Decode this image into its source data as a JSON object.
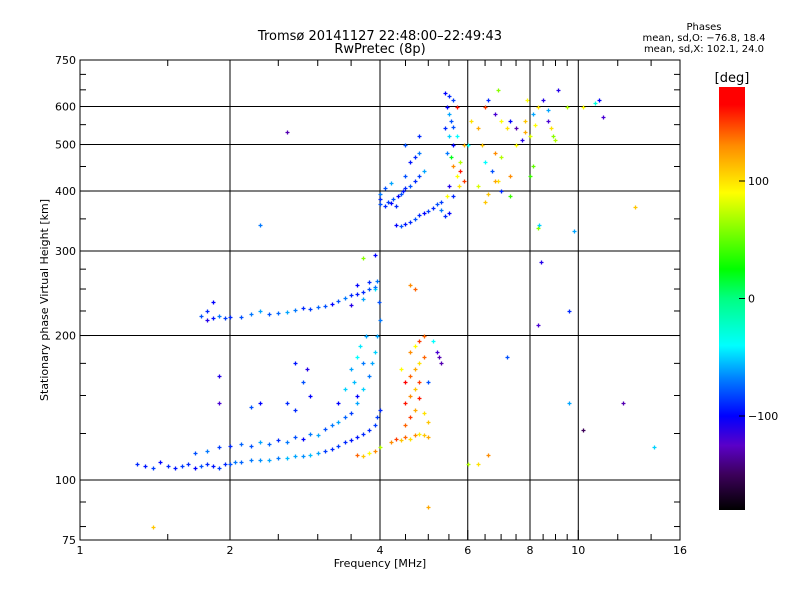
{
  "chart_data": {
    "type": "scatter",
    "title": "Tromsø 20141127 22:48:00–22:49:43",
    "subtitle": "RwPretec (8p)",
    "stats": {
      "heading": "Phases",
      "o_line": "mean, sd,O: −76.8, 18.4",
      "x_line": "mean, sd,X: 102.1, 24.0"
    },
    "xlabel": "Frequency [MHz]",
    "ylabel": "Stationary phase Virtual Height [km]",
    "xscale": "log",
    "yscale": "log",
    "xlim": [
      1,
      16
    ],
    "ylim": [
      75,
      750
    ],
    "xticks": [
      1,
      2,
      4,
      6,
      8,
      10,
      16
    ],
    "xtick_labels": [
      "1",
      "2",
      "4",
      "6",
      "8",
      "10",
      "16"
    ],
    "yticks": [
      75,
      100,
      200,
      300,
      400,
      500,
      600,
      750
    ],
    "ytick_labels": [
      "75",
      "100",
      "200",
      "300",
      "400",
      "500",
      "600",
      "750"
    ],
    "xgrid": [
      2,
      4,
      6,
      8,
      10
    ],
    "ygrid": [
      100,
      200,
      300,
      400,
      500,
      600
    ],
    "grid": true,
    "colorbar": {
      "label": "[deg]",
      "range": [
        -180,
        180
      ],
      "ticks": [
        100,
        0,
        -100
      ],
      "tick_labels": [
        "100",
        "0",
        "−100"
      ],
      "placement": "right"
    },
    "point_format": [
      "frequency_MHz",
      "height_km",
      "phase_deg"
    ],
    "points": [
      [
        1.3,
        108,
        -90
      ],
      [
        1.35,
        107,
        -95
      ],
      [
        1.4,
        106,
        -85
      ],
      [
        1.45,
        109,
        -100
      ],
      [
        1.5,
        107,
        -90
      ],
      [
        1.55,
        106,
        -95
      ],
      [
        1.6,
        107,
        -85
      ],
      [
        1.65,
        108,
        -90
      ],
      [
        1.7,
        106,
        -100
      ],
      [
        1.75,
        107,
        -80
      ],
      [
        1.8,
        108,
        -90
      ],
      [
        1.85,
        107,
        -95
      ],
      [
        1.9,
        106,
        -85
      ],
      [
        1.95,
        108,
        -90
      ],
      [
        2.0,
        108,
        -80
      ],
      [
        2.05,
        109,
        -70
      ],
      [
        2.1,
        109,
        -75
      ],
      [
        2.2,
        110,
        -70
      ],
      [
        2.3,
        110,
        -65
      ],
      [
        2.4,
        110,
        -60
      ],
      [
        2.5,
        111,
        -70
      ],
      [
        2.6,
        111,
        -55
      ],
      [
        2.7,
        112,
        -60
      ],
      [
        2.8,
        112,
        -65
      ],
      [
        2.9,
        113,
        -55
      ],
      [
        3.0,
        114,
        -60
      ],
      [
        3.1,
        115,
        -85
      ],
      [
        3.2,
        116,
        -90
      ],
      [
        3.3,
        118,
        -85
      ],
      [
        3.4,
        120,
        -90
      ],
      [
        3.5,
        121,
        -95
      ],
      [
        3.6,
        123,
        -95
      ],
      [
        3.7,
        125,
        -90
      ],
      [
        3.8,
        127,
        -90
      ],
      [
        3.9,
        130,
        -85
      ],
      [
        3.95,
        135,
        -85
      ],
      [
        4.0,
        140,
        -90
      ],
      [
        1.7,
        114,
        -80
      ],
      [
        1.8,
        115,
        -70
      ],
      [
        1.9,
        117,
        -85
      ],
      [
        2.0,
        118,
        -90
      ],
      [
        2.1,
        119,
        -75
      ],
      [
        2.2,
        118,
        -80
      ],
      [
        2.3,
        120,
        -60
      ],
      [
        2.4,
        119,
        -75
      ],
      [
        2.5,
        121,
        -90
      ],
      [
        2.6,
        120,
        -70
      ],
      [
        2.7,
        123,
        -80
      ],
      [
        2.8,
        122,
        -100
      ],
      [
        2.9,
        125,
        -70
      ],
      [
        3.0,
        124,
        -60
      ],
      [
        3.1,
        128,
        -80
      ],
      [
        3.2,
        130,
        -70
      ],
      [
        3.3,
        132,
        -60
      ],
      [
        3.4,
        135,
        -75
      ],
      [
        3.5,
        138,
        -85
      ],
      [
        3.6,
        145,
        -60
      ],
      [
        3.7,
        155,
        -50
      ],
      [
        3.8,
        165,
        -70
      ],
      [
        3.85,
        175,
        -60
      ],
      [
        3.9,
        185,
        -50
      ],
      [
        3.95,
        200,
        -60
      ],
      [
        4.0,
        215,
        -70
      ],
      [
        3.98,
        235,
        -80
      ],
      [
        3.95,
        260,
        -70
      ],
      [
        3.9,
        250,
        -45
      ],
      [
        3.5,
        170,
        -60
      ],
      [
        3.6,
        180,
        -40
      ],
      [
        3.7,
        175,
        -70
      ],
      [
        3.55,
        160,
        -55
      ],
      [
        3.65,
        190,
        -45
      ],
      [
        3.75,
        200,
        -60
      ],
      [
        3.6,
        150,
        -100
      ],
      [
        3.4,
        155,
        -50
      ],
      [
        3.3,
        145,
        -100
      ],
      [
        2.7,
        140,
        -90
      ],
      [
        2.8,
        160,
        -80
      ],
      [
        2.9,
        150,
        -100
      ],
      [
        2.85,
        170,
        -110
      ],
      [
        2.6,
        145,
        -90
      ],
      [
        2.3,
        145,
        -100
      ],
      [
        2.2,
        142,
        -80
      ],
      [
        1.9,
        165,
        -110
      ],
      [
        1.9,
        145,
        -120
      ],
      [
        2.7,
        175,
        -95
      ],
      [
        1.75,
        220,
        -80
      ],
      [
        1.8,
        225,
        -90
      ],
      [
        1.85,
        218,
        -95
      ],
      [
        1.9,
        220,
        -70
      ],
      [
        1.95,
        218,
        -85
      ],
      [
        2.0,
        219,
        -90
      ],
      [
        2.1,
        219,
        -80
      ],
      [
        2.2,
        222,
        -70
      ],
      [
        2.3,
        225,
        -60
      ],
      [
        2.4,
        222,
        -80
      ],
      [
        2.5,
        223,
        -75
      ],
      [
        2.6,
        224,
        -60
      ],
      [
        2.7,
        226,
        -70
      ],
      [
        2.8,
        228,
        -90
      ],
      [
        2.9,
        227,
        -85
      ],
      [
        3.0,
        229,
        -75
      ],
      [
        3.1,
        230,
        -80
      ],
      [
        3.2,
        233,
        -100
      ],
      [
        3.3,
        236,
        -80
      ],
      [
        3.4,
        240,
        -70
      ],
      [
        3.5,
        243,
        -90
      ],
      [
        3.6,
        244,
        -95
      ],
      [
        3.7,
        247,
        -90
      ],
      [
        3.8,
        250,
        -80
      ],
      [
        3.9,
        253,
        -70
      ],
      [
        3.7,
        238,
        -60
      ],
      [
        3.5,
        232,
        -110
      ],
      [
        3.6,
        255,
        -100
      ],
      [
        3.8,
        258,
        -90
      ],
      [
        1.85,
        235,
        -100
      ],
      [
        1.8,
        215,
        -110
      ],
      [
        4.2,
        120,
        130
      ],
      [
        4.3,
        122,
        150
      ],
      [
        4.4,
        121,
        110
      ],
      [
        4.5,
        123,
        140
      ],
      [
        4.6,
        122,
        100
      ],
      [
        4.7,
        124,
        130
      ],
      [
        4.8,
        125,
        95
      ],
      [
        4.9,
        124,
        110
      ],
      [
        5.0,
        123,
        120
      ],
      [
        4.5,
        130,
        140
      ],
      [
        4.6,
        135,
        150
      ],
      [
        4.7,
        140,
        120
      ],
      [
        4.5,
        145,
        160
      ],
      [
        4.6,
        150,
        130
      ],
      [
        4.7,
        155,
        110
      ],
      [
        4.8,
        160,
        150
      ],
      [
        4.6,
        165,
        140
      ],
      [
        4.7,
        170,
        120
      ],
      [
        4.8,
        175,
        100
      ],
      [
        4.9,
        180,
        140
      ],
      [
        4.6,
        185,
        130
      ],
      [
        4.7,
        190,
        90
      ],
      [
        4.8,
        195,
        150
      ],
      [
        4.9,
        200,
        140
      ],
      [
        4.5,
        160,
        170
      ],
      [
        4.4,
        170,
        90
      ],
      [
        4.8,
        148,
        160
      ],
      [
        4.9,
        138,
        100
      ],
      [
        5.0,
        132,
        110
      ],
      [
        4.7,
        250,
        140
      ],
      [
        3.7,
        112,
        110
      ],
      [
        3.8,
        114,
        90
      ],
      [
        3.9,
        115,
        130
      ],
      [
        3.6,
        113,
        140
      ],
      [
        4.0,
        117,
        70
      ],
      [
        5.2,
        185,
        -120
      ],
      [
        5.0,
        160,
        -80
      ],
      [
        5.3,
        175,
        -130
      ],
      [
        5.25,
        180,
        -130
      ],
      [
        4.0,
        375,
        -80
      ],
      [
        4.0,
        385,
        -90
      ],
      [
        4.0,
        395,
        -70
      ],
      [
        4.1,
        372,
        -90
      ],
      [
        4.15,
        380,
        -85
      ],
      [
        4.2,
        378,
        -100
      ],
      [
        4.25,
        385,
        -80
      ],
      [
        4.3,
        372,
        -90
      ],
      [
        4.35,
        390,
        -100
      ],
      [
        4.4,
        395,
        -80
      ],
      [
        4.45,
        400,
        -95
      ],
      [
        4.5,
        405,
        -90
      ],
      [
        4.6,
        410,
        -80
      ],
      [
        4.7,
        420,
        -90
      ],
      [
        4.8,
        430,
        -85
      ],
      [
        4.9,
        440,
        -60
      ],
      [
        4.3,
        340,
        -100
      ],
      [
        4.4,
        338,
        -80
      ],
      [
        4.5,
        342,
        -95
      ],
      [
        4.6,
        345,
        -90
      ],
      [
        4.7,
        350,
        -80
      ],
      [
        4.8,
        356,
        -90
      ],
      [
        4.9,
        360,
        -100
      ],
      [
        5.0,
        363,
        -85
      ],
      [
        5.1,
        368,
        -90
      ],
      [
        5.2,
        375,
        -80
      ],
      [
        5.3,
        365,
        -70
      ],
      [
        5.4,
        355,
        -90
      ],
      [
        5.5,
        360,
        -100
      ],
      [
        5.3,
        380,
        -85
      ],
      [
        4.1,
        405,
        -80
      ],
      [
        4.2,
        415,
        -60
      ],
      [
        4.5,
        430,
        -80
      ],
      [
        4.6,
        460,
        -95
      ],
      [
        4.7,
        470,
        -90
      ],
      [
        4.8,
        480,
        -70
      ],
      [
        4.5,
        500,
        -80
      ],
      [
        4.8,
        520,
        -90
      ],
      [
        5.4,
        640,
        -100
      ],
      [
        5.5,
        630,
        -90
      ],
      [
        5.6,
        620,
        -85
      ],
      [
        5.45,
        600,
        -100
      ],
      [
        5.5,
        580,
        -60
      ],
      [
        5.55,
        560,
        -80
      ],
      [
        5.4,
        540,
        -90
      ],
      [
        5.5,
        520,
        -50
      ],
      [
        5.6,
        500,
        -100
      ],
      [
        5.45,
        480,
        -70
      ],
      [
        5.55,
        470,
        20
      ],
      [
        5.6,
        450,
        130
      ],
      [
        5.7,
        430,
        90
      ],
      [
        5.75,
        410,
        100
      ],
      [
        5.8,
        460,
        70
      ],
      [
        5.9,
        500,
        120
      ],
      [
        5.7,
        520,
        -40
      ],
      [
        5.8,
        440,
        160
      ],
      [
        5.9,
        420,
        150
      ],
      [
        5.5,
        410,
        -110
      ],
      [
        5.6,
        390,
        -90
      ],
      [
        5.45,
        390,
        90
      ],
      [
        5.6,
        545,
        -80
      ],
      [
        5.7,
        600,
        160
      ],
      [
        6.1,
        560,
        100
      ],
      [
        6.3,
        540,
        120
      ],
      [
        6.5,
        600,
        150
      ],
      [
        6.6,
        620,
        -90
      ],
      [
        6.8,
        580,
        -120
      ],
      [
        7.0,
        560,
        90
      ],
      [
        7.2,
        540,
        100
      ],
      [
        6.4,
        500,
        110
      ],
      [
        6.8,
        480,
        130
      ],
      [
        7.0,
        470,
        70
      ],
      [
        6.5,
        460,
        -40
      ],
      [
        6.7,
        440,
        -80
      ],
      [
        6.9,
        420,
        100
      ],
      [
        6.3,
        410,
        80
      ],
      [
        6.6,
        395,
        110
      ],
      [
        7.0,
        400,
        -90
      ],
      [
        7.3,
        430,
        130
      ],
      [
        7.5,
        500,
        90
      ],
      [
        7.7,
        510,
        -110
      ],
      [
        7.5,
        540,
        -130
      ],
      [
        7.3,
        560,
        -100
      ],
      [
        7.8,
        530,
        120
      ],
      [
        8.0,
        520,
        80
      ],
      [
        8.2,
        550,
        90
      ],
      [
        8.1,
        580,
        -60
      ],
      [
        8.3,
        600,
        100
      ],
      [
        8.5,
        620,
        -110
      ],
      [
        8.7,
        560,
        -120
      ],
      [
        8.8,
        540,
        100
      ],
      [
        8.9,
        520,
        60
      ],
      [
        9.0,
        510,
        70
      ],
      [
        8.7,
        590,
        -60
      ],
      [
        9.1,
        650,
        -110
      ],
      [
        9.5,
        600,
        70
      ],
      [
        10.2,
        600,
        90
      ],
      [
        10.8,
        610,
        -30
      ],
      [
        11.2,
        570,
        -120
      ],
      [
        11.0,
        620,
        -100
      ],
      [
        7.8,
        560,
        110
      ],
      [
        7.9,
        620,
        90
      ],
      [
        8.0,
        430,
        40
      ],
      [
        8.1,
        450,
        50
      ],
      [
        6.9,
        650,
        60
      ],
      [
        6.5,
        380,
        110
      ],
      [
        8.3,
        335,
        60
      ],
      [
        8.35,
        340,
        -50
      ],
      [
        9.8,
        330,
        -60
      ],
      [
        13.0,
        370,
        110
      ],
      [
        6.8,
        420,
        120
      ],
      [
        7.3,
        390,
        40
      ],
      [
        6.0,
        500,
        -40
      ],
      [
        1.4,
        80,
        110
      ],
      [
        2.6,
        530,
        -130
      ],
      [
        2.3,
        340,
        -70
      ],
      [
        3.9,
        295,
        -100
      ],
      [
        5.0,
        88,
        120
      ],
      [
        6.0,
        108,
        70
      ],
      [
        6.3,
        108,
        100
      ],
      [
        6.6,
        113,
        130
      ],
      [
        7.2,
        180,
        -80
      ],
      [
        8.4,
        285,
        -110
      ],
      [
        8.3,
        210,
        -120
      ],
      [
        9.6,
        225,
        -90
      ],
      [
        9.6,
        145,
        -60
      ],
      [
        10.2,
        127,
        -150
      ],
      [
        12.3,
        145,
        -130
      ],
      [
        14.2,
        117,
        -50
      ],
      [
        3.7,
        290,
        60
      ],
      [
        4.6,
        255,
        130
      ],
      [
        5.1,
        195,
        -40
      ]
    ]
  }
}
